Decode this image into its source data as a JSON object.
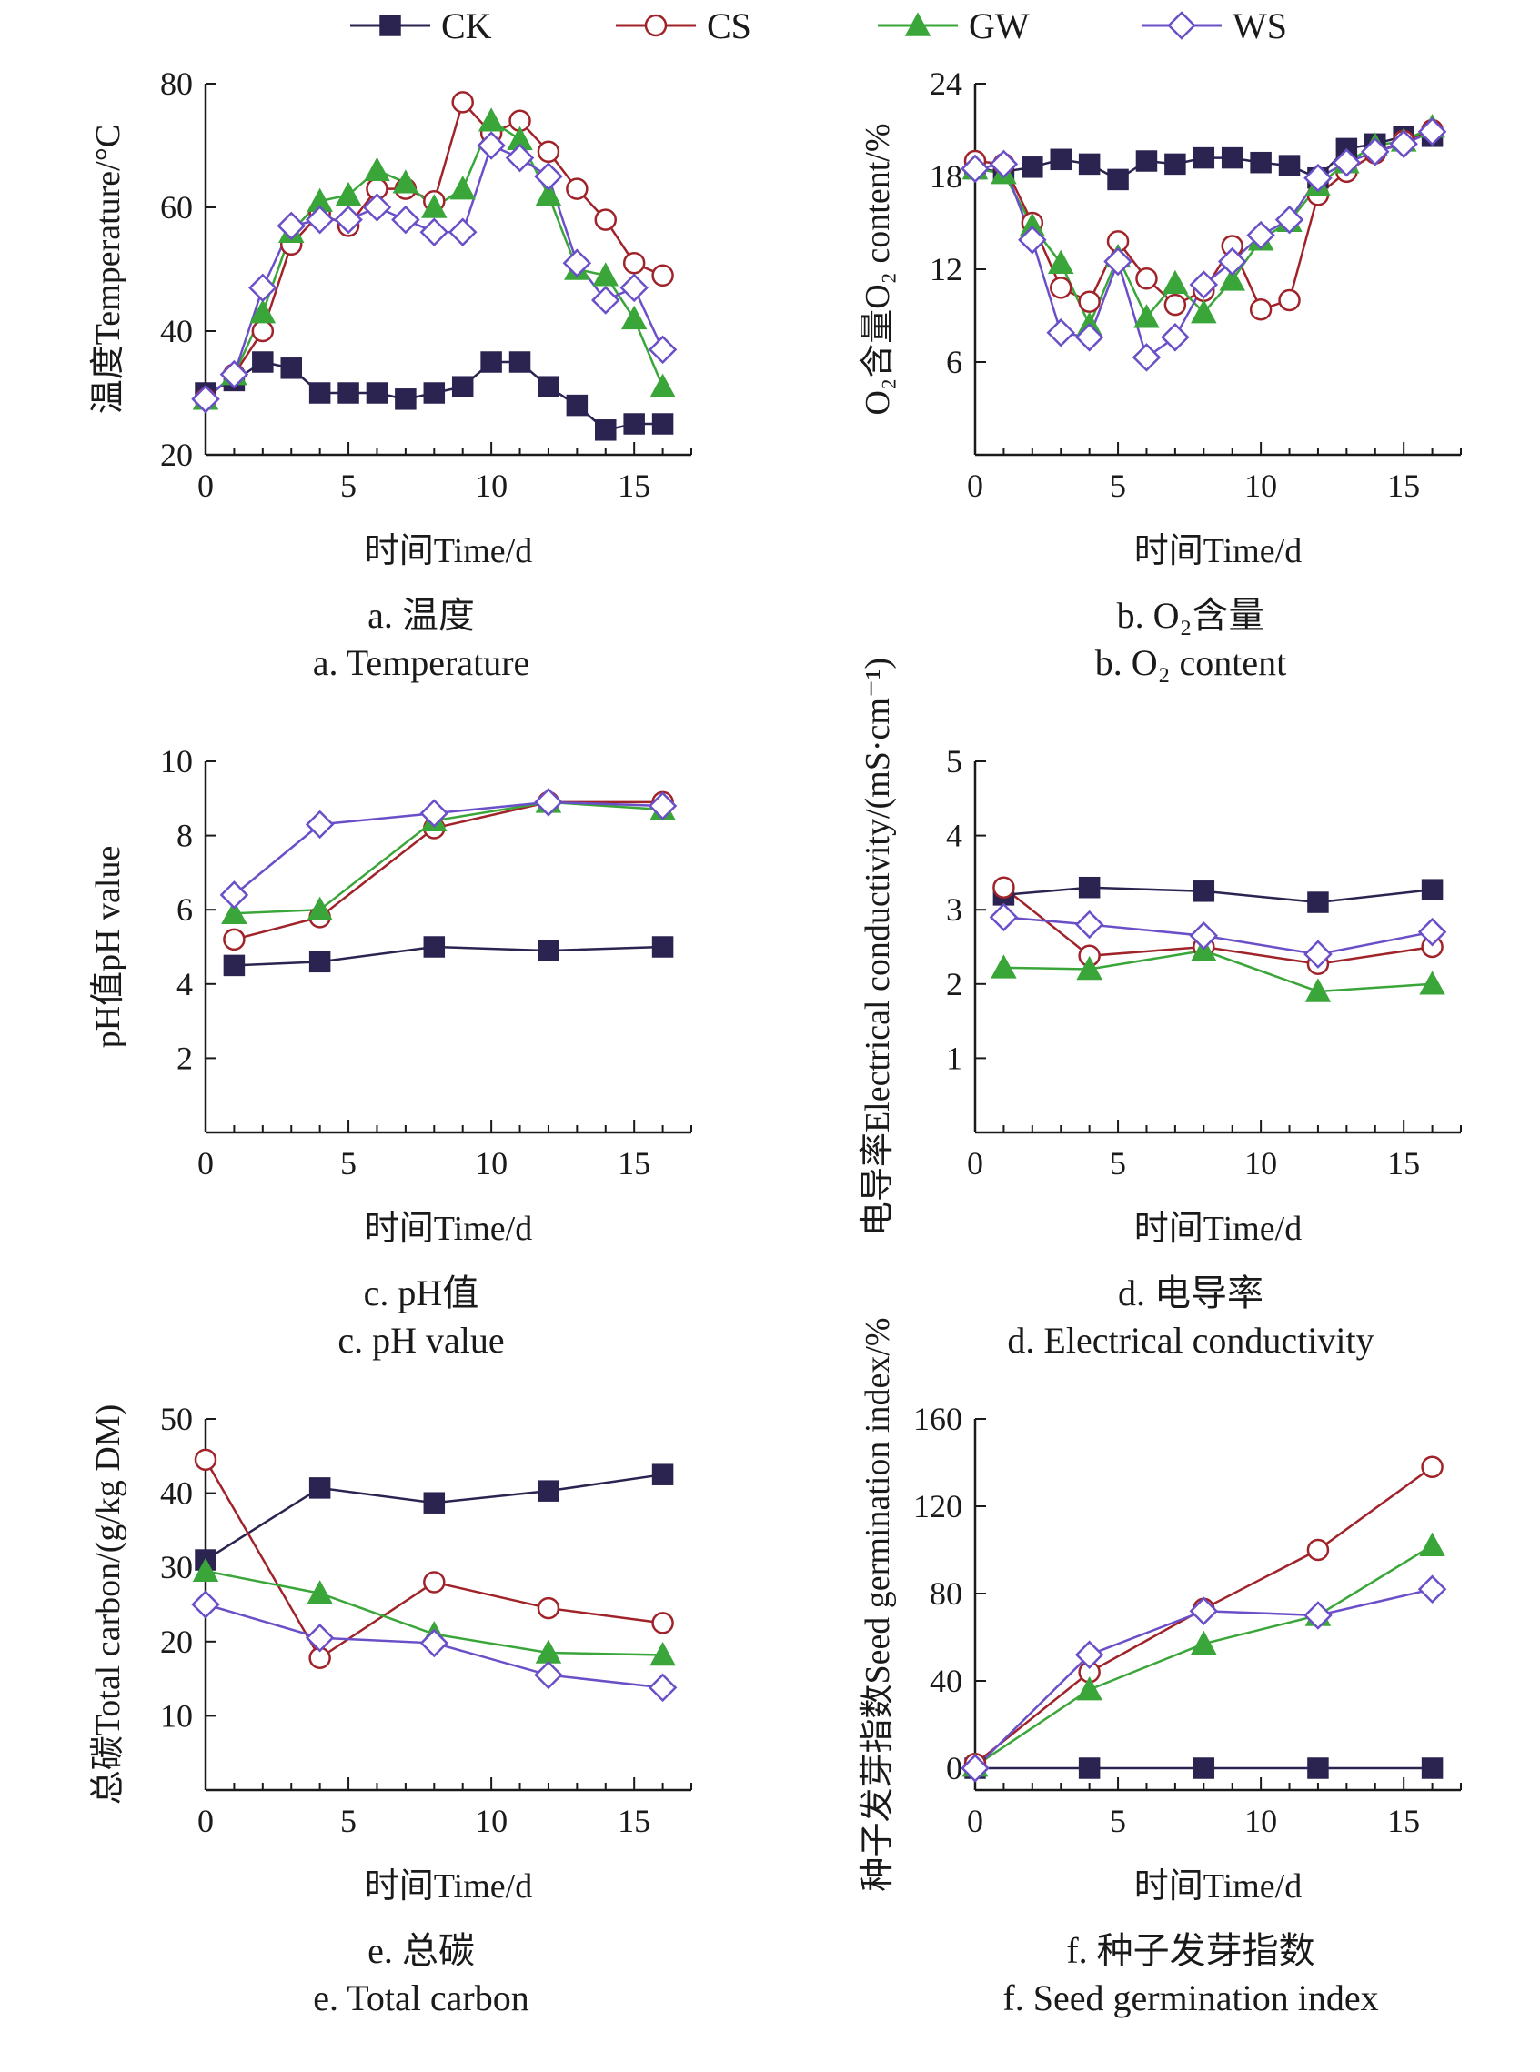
{
  "legend": [
    {
      "name": "CK",
      "color": "#2b2350",
      "marker": "square"
    },
    {
      "name": "CS",
      "color": "#a0232a",
      "marker": "circle"
    },
    {
      "name": "GW",
      "color": "#3aa63a",
      "marker": "triangle"
    },
    {
      "name": "WS",
      "color": "#6a4fc8",
      "marker": "diamond"
    }
  ],
  "chart_data": [
    {
      "type": "line",
      "ylabel_cn": "温度",
      "ylabel": "Temperature/°C",
      "xlabel": "时间Time/d",
      "caption_cn": "a. 温度",
      "caption_en": "a. Temperature",
      "xlim": [
        0,
        17
      ],
      "ylim": [
        20,
        80
      ],
      "xticks": [
        0,
        5,
        10,
        15
      ],
      "yticks": [
        20,
        40,
        60,
        80
      ],
      "series": [
        {
          "name": "CK",
          "x": [
            0,
            1,
            2,
            3,
            4,
            5,
            6,
            7,
            8,
            9,
            10,
            11,
            12,
            13,
            14,
            15,
            16
          ],
          "y": [
            30,
            32,
            35,
            34,
            30,
            30,
            30,
            29,
            30,
            31,
            35,
            35,
            31,
            28,
            24,
            25,
            25
          ]
        },
        {
          "name": "CS",
          "x": [
            0,
            1,
            2,
            3,
            4,
            5,
            6,
            7,
            8,
            9,
            10,
            11,
            12,
            13,
            14,
            15,
            16
          ],
          "y": [
            29,
            33,
            40,
            54,
            59,
            57,
            63,
            63,
            61,
            77,
            72,
            74,
            69,
            63,
            58,
            51,
            49
          ]
        },
        {
          "name": "GW",
          "x": [
            0,
            1,
            2,
            3,
            4,
            5,
            6,
            7,
            8,
            9,
            10,
            11,
            12,
            13,
            14,
            15,
            16
          ],
          "y": [
            29,
            33,
            43,
            56,
            61,
            62,
            66,
            64,
            60,
            63,
            74,
            71,
            62,
            50,
            49,
            42,
            31
          ]
        },
        {
          "name": "WS",
          "x": [
            0,
            1,
            2,
            3,
            4,
            5,
            6,
            7,
            8,
            9,
            10,
            11,
            12,
            13,
            14,
            15,
            16
          ],
          "y": [
            29,
            33,
            47,
            57,
            58,
            58,
            60,
            58,
            56,
            56,
            70,
            68,
            65,
            51,
            45,
            47,
            37
          ]
        }
      ]
    },
    {
      "type": "line",
      "ylabel_cn": "O₂含量",
      "ylabel": "O₂ content/%",
      "xlabel": "时间Time/d",
      "caption_cn": "b. O₂含量",
      "caption_en": "b. O₂ content",
      "xlim": [
        0,
        17
      ],
      "ylim": [
        0,
        24
      ],
      "xticks": [
        0,
        5,
        10,
        15
      ],
      "yticks": [
        6,
        12,
        18,
        24
      ],
      "series": [
        {
          "name": "CK",
          "x": [
            0,
            1,
            2,
            3,
            4,
            5,
            6,
            7,
            8,
            9,
            10,
            11,
            12,
            13,
            14,
            15,
            16
          ],
          "y": [
            18.5,
            18.3,
            18.6,
            19.1,
            18.8,
            17.8,
            19.0,
            18.8,
            19.2,
            19.2,
            18.9,
            18.7,
            17.9,
            19.8,
            20.1,
            20.6,
            20.6
          ]
        },
        {
          "name": "CS",
          "x": [
            0,
            1,
            2,
            3,
            4,
            5,
            6,
            7,
            8,
            9,
            10,
            11,
            12,
            13,
            14,
            15,
            16
          ],
          "y": [
            19.0,
            18.8,
            15.0,
            10.8,
            9.9,
            13.8,
            11.4,
            9.7,
            10.6,
            13.5,
            9.4,
            10.0,
            16.8,
            18.3,
            19.5,
            20.3,
            21.0
          ]
        },
        {
          "name": "GW",
          "x": [
            0,
            1,
            2,
            3,
            4,
            5,
            6,
            7,
            8,
            9,
            10,
            11,
            12,
            13,
            14,
            15,
            16
          ],
          "y": [
            18.5,
            18.2,
            14.8,
            12.4,
            8.4,
            12.8,
            8.9,
            11.1,
            9.2,
            11.3,
            13.9,
            15.1,
            17.4,
            18.9,
            20.0,
            20.3,
            21.2
          ]
        },
        {
          "name": "WS",
          "x": [
            0,
            1,
            2,
            3,
            4,
            5,
            6,
            7,
            8,
            9,
            10,
            11,
            12,
            13,
            14,
            15,
            16
          ],
          "y": [
            18.5,
            18.8,
            13.9,
            7.9,
            7.6,
            12.5,
            6.3,
            7.6,
            11.0,
            12.5,
            14.2,
            15.2,
            17.9,
            18.9,
            19.6,
            20.1,
            20.9
          ]
        }
      ]
    },
    {
      "type": "line",
      "ylabel_cn": "pH值",
      "ylabel": "pH value",
      "xlabel": "时间Time/d",
      "caption_cn": "c. pH值",
      "caption_en": "c. pH value",
      "xlim": [
        0,
        17
      ],
      "ylim": [
        0,
        10
      ],
      "xticks": [
        0,
        5,
        10,
        15
      ],
      "yticks": [
        2,
        4,
        6,
        8,
        10
      ],
      "series": [
        {
          "name": "CK",
          "x": [
            1,
            4,
            8,
            12,
            16
          ],
          "y": [
            4.5,
            4.6,
            5.0,
            4.9,
            5.0
          ]
        },
        {
          "name": "CS",
          "x": [
            1,
            4,
            8,
            12,
            16
          ],
          "y": [
            5.2,
            5.8,
            8.2,
            8.9,
            8.9
          ]
        },
        {
          "name": "GW",
          "x": [
            1,
            4,
            8,
            12,
            16
          ],
          "y": [
            5.9,
            6.0,
            8.4,
            8.9,
            8.7
          ]
        },
        {
          "name": "WS",
          "x": [
            1,
            4,
            8,
            12,
            16
          ],
          "y": [
            6.4,
            8.3,
            8.6,
            8.9,
            8.8
          ]
        }
      ]
    },
    {
      "type": "line",
      "ylabel_cn": "电导率",
      "ylabel": "Electrical conductivity/(mS·cm⁻¹)",
      "xlabel": "时间Time/d",
      "caption_cn": "d. 电导率",
      "caption_en": "d. Electrical conductivity",
      "xlim": [
        0,
        17
      ],
      "ylim": [
        0,
        5
      ],
      "xticks": [
        0,
        5,
        10,
        15
      ],
      "yticks": [
        1,
        2,
        3,
        4,
        5
      ],
      "series": [
        {
          "name": "CK",
          "x": [
            1,
            4,
            8,
            12,
            16
          ],
          "y": [
            3.2,
            3.3,
            3.25,
            3.1,
            3.27
          ]
        },
        {
          "name": "CS",
          "x": [
            1,
            4,
            8,
            12,
            16
          ],
          "y": [
            3.3,
            2.38,
            2.5,
            2.27,
            2.5
          ]
        },
        {
          "name": "GW",
          "x": [
            1,
            4,
            8,
            12,
            16
          ],
          "y": [
            2.22,
            2.2,
            2.45,
            1.9,
            2.0
          ]
        },
        {
          "name": "WS",
          "x": [
            1,
            4,
            8,
            12,
            16
          ],
          "y": [
            2.9,
            2.8,
            2.65,
            2.4,
            2.7
          ]
        }
      ]
    },
    {
      "type": "line",
      "ylabel_cn": "总碳",
      "ylabel": "Total carbon/(g/kg DM)",
      "xlabel": "时间Time/d",
      "caption_cn": "e. 总碳",
      "caption_en": "e. Total carbon",
      "xlim": [
        0,
        17
      ],
      "ylim": [
        0,
        50
      ],
      "xticks": [
        0,
        5,
        10,
        15
      ],
      "yticks": [
        10,
        20,
        30,
        40,
        50
      ],
      "series": [
        {
          "name": "CK",
          "x": [
            0,
            4,
            8,
            12,
            16
          ],
          "y": [
            31.0,
            40.7,
            38.7,
            40.3,
            42.5
          ]
        },
        {
          "name": "CS",
          "x": [
            0,
            4,
            8,
            12,
            16
          ],
          "y": [
            44.5,
            17.8,
            28.0,
            24.5,
            22.5
          ]
        },
        {
          "name": "GW",
          "x": [
            0,
            4,
            8,
            12,
            16
          ],
          "y": [
            29.5,
            26.5,
            21.0,
            18.5,
            18.2
          ]
        },
        {
          "name": "WS",
          "x": [
            0,
            4,
            8,
            12,
            16
          ],
          "y": [
            25.0,
            20.5,
            19.8,
            15.5,
            13.8
          ]
        }
      ]
    },
    {
      "type": "line",
      "ylabel_cn": "种子发芽指数",
      "ylabel": "Seed germination index/%",
      "xlabel": "时间Time/d",
      "caption_cn": "f. 种子发芽指数",
      "caption_en": "f. Seed germination index",
      "xlim": [
        0,
        17
      ],
      "ylim": [
        -10,
        160
      ],
      "xticks": [
        0,
        5,
        10,
        15
      ],
      "yticks": [
        0,
        40,
        80,
        120,
        160
      ],
      "series": [
        {
          "name": "CK",
          "x": [
            0,
            4,
            8,
            12,
            16
          ],
          "y": [
            0,
            0,
            0,
            0,
            0
          ]
        },
        {
          "name": "CS",
          "x": [
            0,
            4,
            8,
            12,
            16
          ],
          "y": [
            2,
            44,
            73,
            100,
            138
          ]
        },
        {
          "name": "GW",
          "x": [
            0,
            4,
            8,
            12,
            16
          ],
          "y": [
            1,
            36,
            57,
            70,
            102
          ]
        },
        {
          "name": "WS",
          "x": [
            0,
            4,
            8,
            12,
            16
          ],
          "y": [
            0,
            52,
            72,
            70,
            82
          ]
        }
      ]
    }
  ]
}
